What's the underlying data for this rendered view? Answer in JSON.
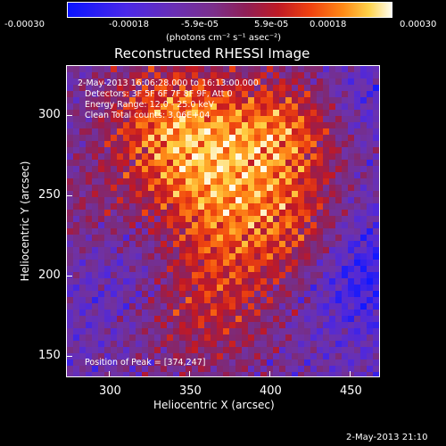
{
  "colorbar": {
    "tick_labels": [
      "-0.00030",
      "-0.00018",
      "-5.9e-05",
      "5.9e-05",
      "0.00018",
      "0.00030"
    ],
    "unit_label": "(photons cm⁻² s⁻¹ asec⁻²)",
    "min": -0.0003,
    "max": 0.0003
  },
  "plot": {
    "title": "Reconstructed RHESSI Image",
    "annotations": [
      "2-May-2013 16:06:28.000 to 16:13:00.000",
      "Detectors: 3F 5F 6F 7F 8F 9F, Att 0",
      "Energy Range: 12.0 - 25.0 keV",
      "Clean    Total counts: 3.06E+04"
    ],
    "peak_label": "Position of Peak = [374,247]",
    "xlabel": "Heliocentric X (arcsec)",
    "ylabel": "Heliocentric Y (arcsec)",
    "x_ticks": [
      "300",
      "350",
      "400",
      "450"
    ],
    "y_ticks": [
      "300",
      "250",
      "200",
      "150"
    ],
    "xlim": [
      272,
      467
    ],
    "ylim": [
      137,
      333
    ]
  },
  "footer": {
    "timestamp": "2-May-2013 21:10"
  }
}
